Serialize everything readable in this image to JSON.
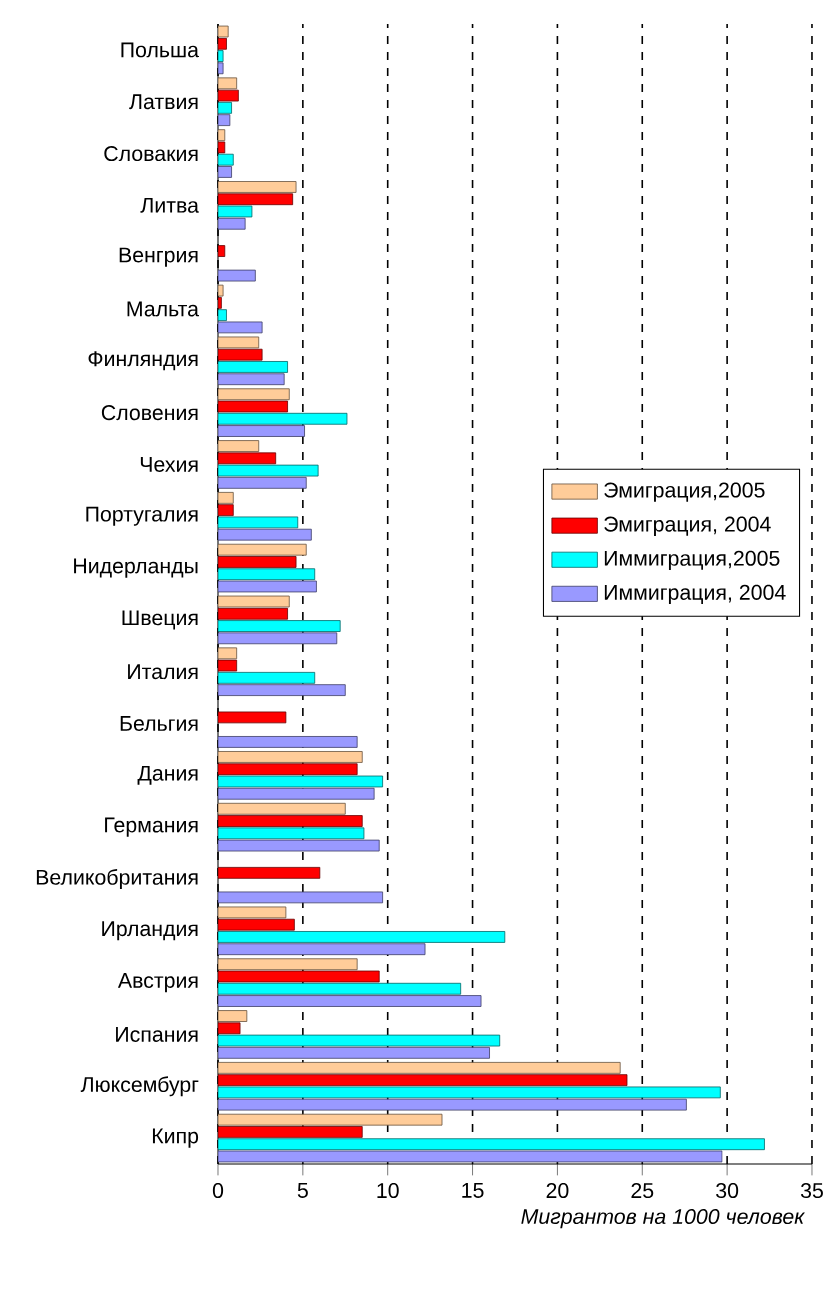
{
  "chart_data": {
    "type": "bar",
    "orientation": "horizontal",
    "xlabel": "Мигрантов на 1000 человек",
    "categories": [
      "Польша",
      "Латвия",
      "Словакия",
      "Литва",
      "Венгрия",
      "Мальта",
      "Финляндия",
      "Словения",
      "Чехия",
      "Португалия",
      "Нидерланды",
      "Швеция",
      "Италия",
      "Бельгия",
      "Дания",
      "Германия",
      "Великобритания",
      "Ирландия",
      "Австрия",
      "Испания",
      "Люксембург",
      "Кипр"
    ],
    "series": [
      {
        "name": "Эмиграция,2005",
        "color": "#ffcc99",
        "values": [
          0.6,
          1.1,
          0.4,
          4.6,
          null,
          0.3,
          2.4,
          4.2,
          2.4,
          0.9,
          5.2,
          4.2,
          1.1,
          null,
          8.5,
          7.5,
          null,
          4.0,
          8.2,
          1.7,
          23.7,
          13.2
        ]
      },
      {
        "name": "Эмиграция, 2004",
        "color": "#ff0000",
        "values": [
          0.5,
          1.2,
          0.4,
          4.4,
          0.4,
          0.2,
          2.6,
          4.1,
          3.4,
          0.9,
          4.6,
          4.1,
          1.1,
          4.0,
          8.2,
          8.5,
          6.0,
          4.5,
          9.5,
          1.3,
          24.1,
          8.5
        ]
      },
      {
        "name": "Иммиграция,2005",
        "color": "#00ffff",
        "values": [
          0.3,
          0.8,
          0.9,
          2.0,
          null,
          0.5,
          4.1,
          7.6,
          5.9,
          4.7,
          5.7,
          7.2,
          5.7,
          null,
          9.7,
          8.6,
          null,
          16.9,
          14.3,
          16.6,
          29.6,
          32.2
        ]
      },
      {
        "name": "Иммиграция, 2004",
        "color": "#9999ff",
        "values": [
          0.3,
          0.7,
          0.8,
          1.6,
          2.2,
          2.6,
          3.9,
          5.1,
          5.2,
          5.5,
          5.8,
          7.0,
          7.5,
          8.2,
          9.2,
          9.5,
          9.7,
          12.2,
          15.5,
          16.0,
          27.6,
          29.7
        ]
      }
    ],
    "xlim": [
      0,
      35
    ],
    "xticks": [
      0,
      5,
      10,
      15,
      20,
      25,
      30,
      35
    ],
    "grid": "x",
    "legend": "right"
  }
}
